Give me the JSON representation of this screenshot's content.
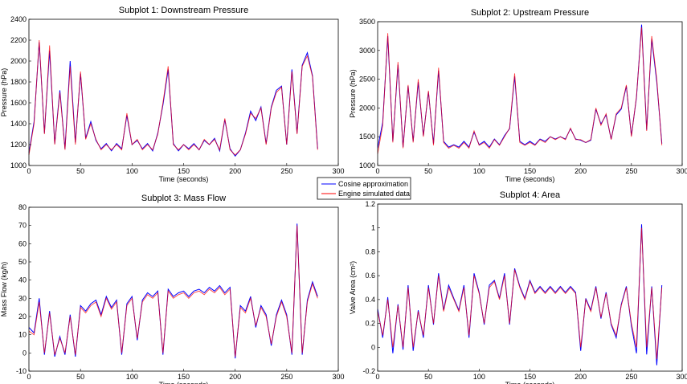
{
  "legend": {
    "items": [
      {
        "label": "Cosine approximation",
        "color": "#0000ff"
      },
      {
        "label": "Engine simulated data",
        "color": "#ff0000"
      }
    ]
  },
  "chart_data": [
    {
      "type": "line",
      "title": "Subplot 1: Downstream Pressure",
      "xlabel": "Time (seconds)",
      "ylabel": "Pressure (hPa)",
      "xlim": [
        0,
        300
      ],
      "ylim": [
        1000,
        2400
      ],
      "xticks": [
        "0",
        "50",
        "100",
        "150",
        "200",
        "250",
        "300"
      ],
      "yticks": [
        "1000",
        "1200",
        "1400",
        "1600",
        "1800",
        "2000",
        "2200",
        "2400"
      ],
      "x_step": 5,
      "series": [
        {
          "name": "Cosine approximation",
          "values": [
            1120,
            1420,
            2180,
            1310,
            2100,
            1210,
            1720,
            1160,
            2000,
            1220,
            1880,
            1260,
            1420,
            1240,
            1160,
            1210,
            1140,
            1210,
            1160,
            1480,
            1200,
            1240,
            1160,
            1210,
            1140,
            1310,
            1580,
            1920,
            1210,
            1140,
            1200,
            1160,
            1210,
            1150,
            1240,
            1200,
            1260,
            1140,
            1440,
            1160,
            1090,
            1150,
            1310,
            1520,
            1430,
            1560,
            1210,
            1560,
            1720,
            1760,
            1200,
            1920,
            1310,
            1960,
            2080,
            1860,
            1160
          ]
        },
        {
          "name": "Engine simulated data",
          "values": [
            1100,
            1400,
            2200,
            1300,
            2150,
            1200,
            1700,
            1150,
            1950,
            1200,
            1900,
            1250,
            1400,
            1250,
            1150,
            1200,
            1150,
            1200,
            1150,
            1500,
            1200,
            1250,
            1150,
            1200,
            1150,
            1300,
            1600,
            1950,
            1200,
            1150,
            1200,
            1150,
            1200,
            1150,
            1250,
            1200,
            1250,
            1150,
            1450,
            1150,
            1100,
            1150,
            1300,
            1500,
            1450,
            1550,
            1200,
            1550,
            1700,
            1750,
            1200,
            1900,
            1300,
            1950,
            2050,
            1850,
            1150
          ]
        }
      ]
    },
    {
      "type": "line",
      "title": "Subplot 2: Upstream Pressure",
      "xlabel": "Time (seconds)",
      "ylabel": "Pressure (hPa)",
      "xlim": [
        0,
        300
      ],
      "ylim": [
        1000,
        3500
      ],
      "xticks": [
        "0",
        "50",
        "100",
        "150",
        "200",
        "250",
        "300"
      ],
      "yticks": [
        "1000",
        "1500",
        "2000",
        "2500",
        "3000",
        "3500"
      ],
      "x_step": 5,
      "series": [
        {
          "name": "Cosine approximation",
          "values": [
            1300,
            1750,
            3250,
            1420,
            2750,
            1320,
            2380,
            1420,
            2450,
            1520,
            2280,
            1380,
            2650,
            1420,
            1320,
            1360,
            1320,
            1420,
            1320,
            1580,
            1360,
            1420,
            1320,
            1460,
            1360,
            1520,
            1640,
            2550,
            1420,
            1360,
            1420,
            1360,
            1460,
            1420,
            1500,
            1460,
            1500,
            1460,
            1640,
            1460,
            1440,
            1400,
            1440,
            1980,
            1720,
            1880,
            1460,
            1880,
            1980,
            2380,
            1520,
            2180,
            3450,
            1620,
            3200,
            2450,
            1380
          ]
        },
        {
          "name": "Engine simulated data",
          "values": [
            1200,
            1700,
            3300,
            1400,
            2800,
            1300,
            2400,
            1400,
            2500,
            1500,
            2300,
            1350,
            2700,
            1400,
            1300,
            1350,
            1300,
            1400,
            1300,
            1600,
            1350,
            1400,
            1300,
            1450,
            1350,
            1500,
            1650,
            2600,
            1400,
            1350,
            1400,
            1350,
            1450,
            1400,
            1500,
            1450,
            1500,
            1450,
            1650,
            1450,
            1450,
            1400,
            1450,
            2000,
            1700,
            1900,
            1450,
            1900,
            2000,
            2400,
            1500,
            2200,
            3400,
            1600,
            3250,
            2500,
            1350
          ]
        }
      ]
    },
    {
      "type": "line",
      "title": "Subplot 3: Mass Flow",
      "xlabel": "Time (seconds)",
      "ylabel": "Mass Flow (kg/h)",
      "xlim": [
        0,
        300
      ],
      "ylim": [
        -10,
        80
      ],
      "xticks": [
        "0",
        "50",
        "100",
        "150",
        "200",
        "250",
        "300"
      ],
      "yticks": [
        "-10",
        "0",
        "10",
        "20",
        "30",
        "40",
        "50",
        "60",
        "70",
        "80"
      ],
      "x_step": 5,
      "series": [
        {
          "name": "Cosine approximation",
          "values": [
            14,
            11,
            30,
            -1,
            23,
            -2,
            9,
            -1,
            21,
            -2,
            26,
            23,
            27,
            29,
            21,
            31,
            25,
            29,
            -1,
            27,
            31,
            7,
            29,
            33,
            31,
            34,
            -1,
            35,
            31,
            33,
            34,
            31,
            34,
            35,
            33,
            36,
            34,
            37,
            33,
            36,
            -3,
            26,
            23,
            31,
            14,
            26,
            21,
            4,
            21,
            29,
            21,
            -1,
            71,
            -1,
            29,
            39,
            31
          ]
        },
        {
          "name": "Engine simulated data",
          "values": [
            12,
            10,
            28,
            0,
            22,
            -1,
            8,
            0,
            20,
            -1,
            25,
            22,
            26,
            28,
            20,
            30,
            24,
            28,
            0,
            26,
            30,
            8,
            28,
            32,
            30,
            33,
            0,
            34,
            30,
            32,
            33,
            30,
            33,
            34,
            32,
            35,
            33,
            36,
            32,
            35,
            -2,
            25,
            22,
            30,
            15,
            25,
            20,
            5,
            20,
            28,
            20,
            0,
            70,
            0,
            28,
            38,
            30
          ]
        }
      ]
    },
    {
      "type": "line",
      "title": "Subplot 4: Area",
      "xlabel": "Time (seconds)",
      "ylabel": "Valve Area (cm²)",
      "xlim": [
        0,
        300
      ],
      "ylim": [
        -0.2,
        1.2
      ],
      "xticks": [
        "0",
        "50",
        "100",
        "150",
        "200",
        "250",
        "300"
      ],
      "yticks": [
        "-0.2",
        "0",
        "0.2",
        "0.4",
        "0.6",
        "0.8",
        "1",
        "1.2"
      ],
      "x_step": 5,
      "series": [
        {
          "name": "Cosine approximation",
          "values": [
            0.32,
            0.08,
            0.42,
            -0.05,
            0.36,
            -0.02,
            0.52,
            -0.03,
            0.31,
            0.08,
            0.52,
            0.19,
            0.62,
            0.31,
            0.52,
            0.41,
            0.31,
            0.52,
            0.08,
            0.62,
            0.46,
            0.19,
            0.52,
            0.56,
            0.41,
            0.62,
            0.19,
            0.66,
            0.51,
            0.41,
            0.56,
            0.46,
            0.51,
            0.46,
            0.51,
            0.46,
            0.51,
            0.46,
            0.51,
            0.46,
            -0.03,
            0.41,
            0.31,
            0.51,
            0.24,
            0.46,
            0.19,
            0.08,
            0.36,
            0.51,
            0.18,
            -0.05,
            1.03,
            -0.06,
            0.51,
            -0.15,
            0.52
          ]
        },
        {
          "name": "Engine simulated data",
          "values": [
            0.3,
            0.1,
            0.4,
            0,
            0.35,
            0,
            0.5,
            0,
            0.3,
            0.1,
            0.5,
            0.2,
            0.6,
            0.3,
            0.5,
            0.4,
            0.3,
            0.5,
            0.1,
            0.6,
            0.45,
            0.2,
            0.5,
            0.55,
            0.4,
            0.6,
            0.2,
            0.65,
            0.5,
            0.4,
            0.55,
            0.45,
            0.5,
            0.45,
            0.5,
            0.45,
            0.5,
            0.45,
            0.5,
            0.45,
            0,
            0.4,
            0.3,
            0.5,
            0.25,
            0.45,
            0.2,
            0.1,
            0.35,
            0.5,
            0.2,
            0,
            1.0,
            0,
            0.5,
            -0.1,
            0.5
          ]
        }
      ]
    }
  ]
}
